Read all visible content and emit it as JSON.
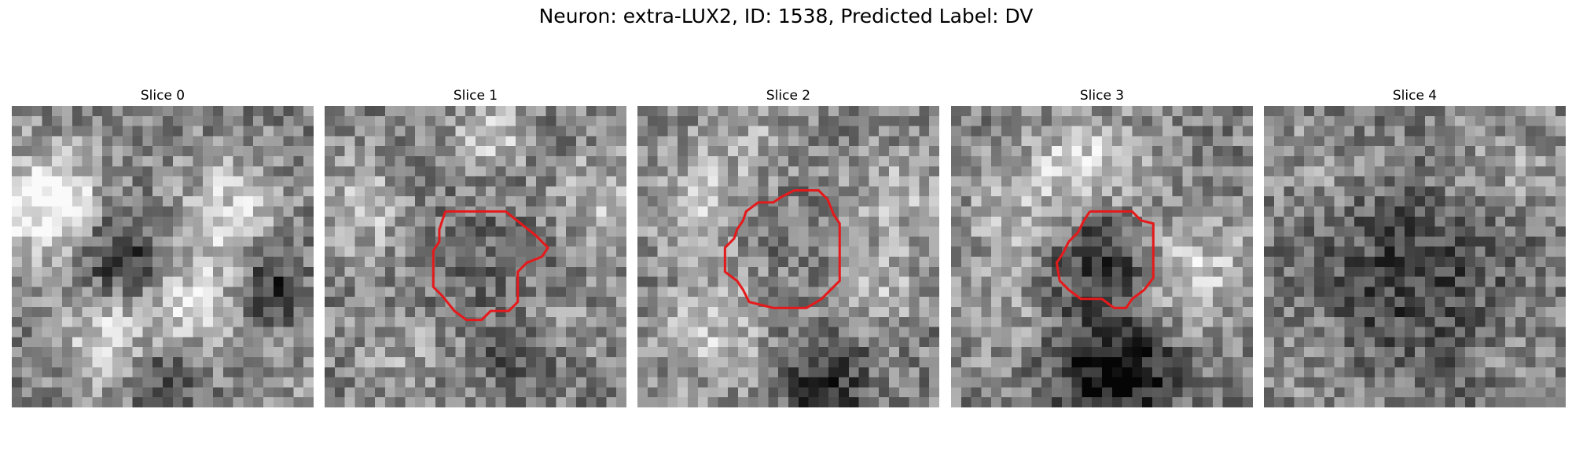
{
  "figure": {
    "title": "Neuron: extra-LUX2, ID: 1538, Predicted Label: DV"
  },
  "slices": [
    {
      "title": "Slice 0",
      "blobs": [
        [
          0.12,
          0.33,
          0.13,
          0.55
        ],
        [
          0.35,
          0.52,
          0.13,
          -0.35
        ],
        [
          0.72,
          0.35,
          0.13,
          0.3
        ],
        [
          0.6,
          0.65,
          0.12,
          0.35
        ],
        [
          0.35,
          0.85,
          0.1,
          0.2
        ],
        [
          0.5,
          0.9,
          0.08,
          -0.3
        ],
        [
          0.85,
          0.6,
          0.08,
          -0.35
        ],
        [
          0.3,
          0.7,
          0.1,
          0.3
        ],
        [
          0.9,
          0.9,
          0.1,
          0.1
        ]
      ],
      "seed": 11,
      "has_contour": false,
      "contour": []
    },
    {
      "title": "Slice 1",
      "blobs": [
        [
          0.48,
          0.52,
          0.16,
          -0.1
        ],
        [
          0.55,
          0.1,
          0.08,
          0.35
        ],
        [
          0.12,
          0.35,
          0.12,
          0.25
        ],
        [
          0.9,
          0.3,
          0.1,
          0.25
        ],
        [
          0.25,
          0.8,
          0.12,
          0.15
        ],
        [
          0.8,
          0.75,
          0.1,
          0.1
        ],
        [
          0.65,
          0.85,
          0.08,
          -0.2
        ]
      ],
      "seed": 22,
      "has_contour": true,
      "contour": [
        [
          0.4,
          0.35
        ],
        [
          0.6,
          0.35
        ],
        [
          0.7,
          0.43
        ],
        [
          0.74,
          0.47
        ],
        [
          0.72,
          0.5
        ],
        [
          0.67,
          0.52
        ],
        [
          0.64,
          0.55
        ],
        [
          0.64,
          0.65
        ],
        [
          0.61,
          0.68
        ],
        [
          0.55,
          0.68
        ],
        [
          0.52,
          0.71
        ],
        [
          0.47,
          0.71
        ],
        [
          0.43,
          0.68
        ],
        [
          0.39,
          0.63
        ],
        [
          0.36,
          0.6
        ],
        [
          0.36,
          0.48
        ],
        [
          0.38,
          0.45
        ],
        [
          0.38,
          0.41
        ],
        [
          0.4,
          0.35
        ]
      ]
    },
    {
      "title": "Slice 2",
      "blobs": [
        [
          0.52,
          0.47,
          0.12,
          -0.05
        ],
        [
          0.2,
          0.3,
          0.12,
          0.25
        ],
        [
          0.85,
          0.3,
          0.12,
          0.2
        ],
        [
          0.25,
          0.75,
          0.14,
          0.25
        ],
        [
          0.62,
          0.92,
          0.1,
          -0.35
        ],
        [
          0.8,
          0.6,
          0.1,
          0.2
        ],
        [
          0.4,
          0.1,
          0.1,
          0.15
        ]
      ],
      "seed": 33,
      "has_contour": true,
      "contour": [
        [
          0.52,
          0.28
        ],
        [
          0.6,
          0.28
        ],
        [
          0.63,
          0.31
        ],
        [
          0.65,
          0.36
        ],
        [
          0.67,
          0.39
        ],
        [
          0.67,
          0.58
        ],
        [
          0.64,
          0.61
        ],
        [
          0.61,
          0.64
        ],
        [
          0.56,
          0.67
        ],
        [
          0.45,
          0.67
        ],
        [
          0.37,
          0.65
        ],
        [
          0.35,
          0.61
        ],
        [
          0.33,
          0.58
        ],
        [
          0.29,
          0.55
        ],
        [
          0.29,
          0.47
        ],
        [
          0.32,
          0.44
        ],
        [
          0.33,
          0.41
        ],
        [
          0.35,
          0.38
        ],
        [
          0.36,
          0.35
        ],
        [
          0.4,
          0.32
        ],
        [
          0.45,
          0.32
        ],
        [
          0.48,
          0.3
        ],
        [
          0.52,
          0.28
        ]
      ]
    },
    {
      "title": "Slice 3",
      "blobs": [
        [
          0.5,
          0.5,
          0.11,
          -0.35
        ],
        [
          0.45,
          0.2,
          0.12,
          0.35
        ],
        [
          0.8,
          0.55,
          0.14,
          0.3
        ],
        [
          0.55,
          0.88,
          0.14,
          -0.5
        ],
        [
          0.15,
          0.7,
          0.12,
          0.15
        ],
        [
          0.2,
          0.35,
          0.12,
          0.2
        ]
      ],
      "seed": 44,
      "has_contour": true,
      "contour": [
        [
          0.46,
          0.35
        ],
        [
          0.6,
          0.35
        ],
        [
          0.63,
          0.38
        ],
        [
          0.67,
          0.39
        ],
        [
          0.67,
          0.57
        ],
        [
          0.64,
          0.61
        ],
        [
          0.6,
          0.64
        ],
        [
          0.58,
          0.67
        ],
        [
          0.54,
          0.67
        ],
        [
          0.5,
          0.64
        ],
        [
          0.43,
          0.64
        ],
        [
          0.39,
          0.61
        ],
        [
          0.36,
          0.58
        ],
        [
          0.35,
          0.52
        ],
        [
          0.37,
          0.49
        ],
        [
          0.39,
          0.45
        ],
        [
          0.42,
          0.42
        ],
        [
          0.44,
          0.38
        ],
        [
          0.46,
          0.35
        ]
      ]
    },
    {
      "title": "Slice 4",
      "blobs": [
        [
          0.5,
          0.58,
          0.22,
          -0.25
        ],
        [
          0.8,
          0.2,
          0.12,
          0.15
        ],
        [
          0.2,
          0.2,
          0.12,
          0.1
        ],
        [
          0.15,
          0.85,
          0.1,
          0.1
        ],
        [
          0.85,
          0.8,
          0.1,
          0.1
        ]
      ],
      "seed": 55,
      "has_contour": false,
      "contour": []
    }
  ],
  "colors": {
    "contour": "#e41a1c"
  }
}
